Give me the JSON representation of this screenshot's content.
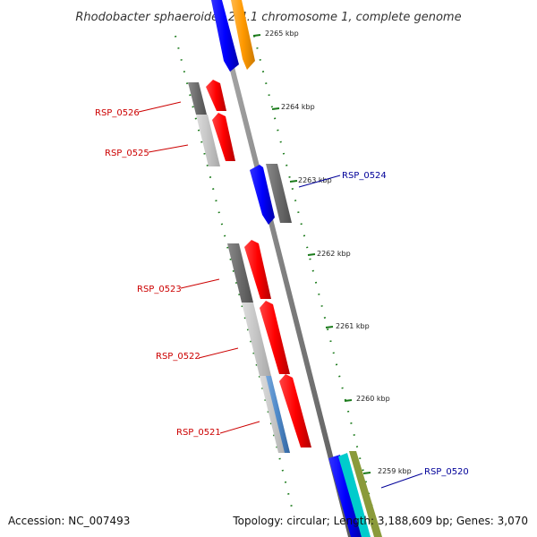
{
  "title": "Rhodobacter sphaeroides 2.4.1 chromosome 1, complete genome",
  "footer": {
    "accession": "Accession: NC_007493",
    "summary": "Topology: circular; Length: 3,188,609 bp; Genes: 3,070"
  },
  "ticks": [
    "2265 kbp",
    "2264 kbp",
    "2263 kbp",
    "2262 kbp",
    "2261 kbp",
    "2260 kbp",
    "2259 kbp"
  ],
  "genes": [
    {
      "label": "RSP_0526",
      "color": "#cc0000"
    },
    {
      "label": "RSP_0525",
      "color": "#cc0000"
    },
    {
      "label": "RSP_0524",
      "color": "#000099"
    },
    {
      "label": "RSP_0523",
      "color": "#cc0000"
    },
    {
      "label": "RSP_0522",
      "color": "#cc0000"
    },
    {
      "label": "RSP_0521",
      "color": "#cc0000"
    },
    {
      "label": "RSP_0520",
      "color": "#000099"
    }
  ],
  "colors": {
    "backbone": "#808080",
    "tick_mark": "#1a7a1a",
    "gene_red": "#ff0000",
    "gene_blue": "#0000ff",
    "gene_orange": "#ff9900",
    "gene_cyan": "#00cccc",
    "gene_olive": "#8a9a3a",
    "feature_dark_gray": "#6b6b6b",
    "feature_light_gray": "#c4c4c4",
    "feature_steel_blue": "#4d88c8"
  }
}
